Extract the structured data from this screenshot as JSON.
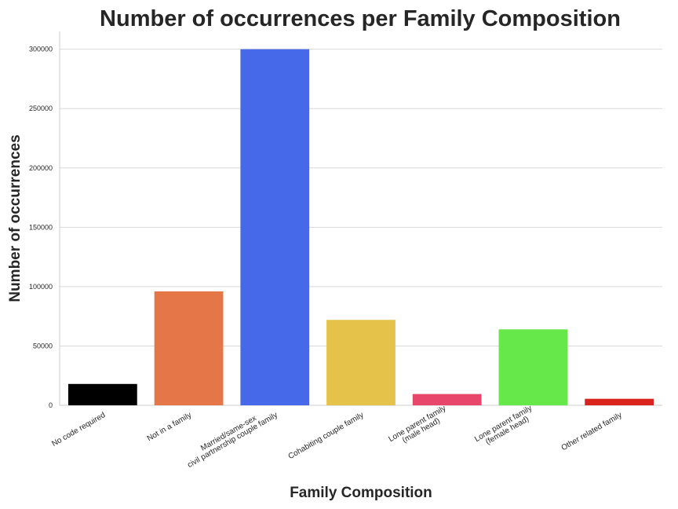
{
  "chart_data": {
    "type": "bar",
    "title": "Number of occurrences per Family Composition",
    "xlabel": "Family Composition",
    "ylabel": "Number of occurrences",
    "categories": [
      "No code required",
      "Not in a family",
      "Married/same-sex\ncivil partnership couple family",
      "Cohabiting couple family",
      "Lone parent family\n(male head)",
      "Lone parent family\n(female head)",
      "Other related family"
    ],
    "values": [
      18000,
      96000,
      300000,
      72000,
      9500,
      64000,
      5500
    ],
    "colors": [
      "#000000",
      "#e57648",
      "#4569e9",
      "#e5c24a",
      "#e8476b",
      "#67e84a",
      "#d9241e"
    ],
    "ylim": [
      0,
      315000
    ],
    "yticks": [
      0,
      50000,
      100000,
      150000,
      200000,
      250000,
      300000
    ],
    "grid": "horizontal"
  }
}
